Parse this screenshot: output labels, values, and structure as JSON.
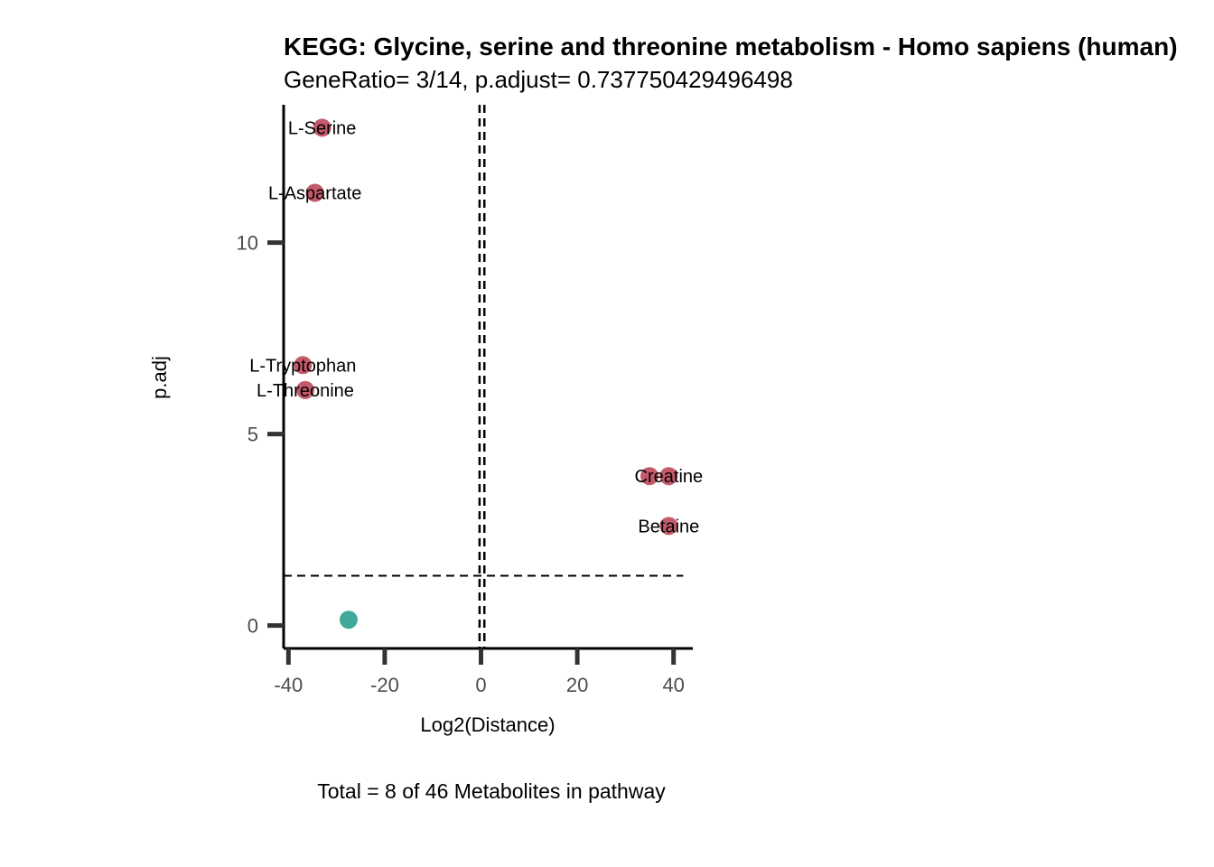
{
  "chart_data": {
    "type": "scatter",
    "title": "KEGG: Glycine, serine and threonine metabolism - Homo sapiens (human)",
    "subtitle": "GeneRatio= 3/14, p.adjust= 0.737750429496498",
    "xlabel": "Log2(Distance)",
    "ylabel": "p.adj",
    "caption": "Total = 8 of 46 Metabolites in pathway",
    "xlim": [
      -41,
      44
    ],
    "ylim": [
      -0.6,
      13.6
    ],
    "x_ticks": [
      -40,
      -20,
      0,
      20,
      40
    ],
    "y_ticks": [
      0,
      5,
      10
    ],
    "vlines": [
      -0.3,
      0.7
    ],
    "hline": 1.3,
    "grid": false,
    "colors": {
      "significant": "#c45a6a",
      "non_significant": "#41a99a"
    },
    "points": [
      {
        "label": "L-Serine",
        "x": -33,
        "y": 13.0,
        "group": "significant"
      },
      {
        "label": "L-Aspartate",
        "x": -34.5,
        "y": 11.3,
        "group": "significant"
      },
      {
        "label": "L-Tryptophan",
        "x": -37,
        "y": 6.8,
        "group": "significant"
      },
      {
        "label": "L-Threonine",
        "x": -36.5,
        "y": 6.15,
        "group": "significant"
      },
      {
        "label": "",
        "x": 35,
        "y": 3.9,
        "group": "significant"
      },
      {
        "label": "Creatine",
        "x": 39,
        "y": 3.9,
        "group": "significant"
      },
      {
        "label": "Betaine",
        "x": 39,
        "y": 2.6,
        "group": "significant"
      },
      {
        "label": "",
        "x": -27.5,
        "y": 0.15,
        "group": "non_significant"
      }
    ]
  }
}
